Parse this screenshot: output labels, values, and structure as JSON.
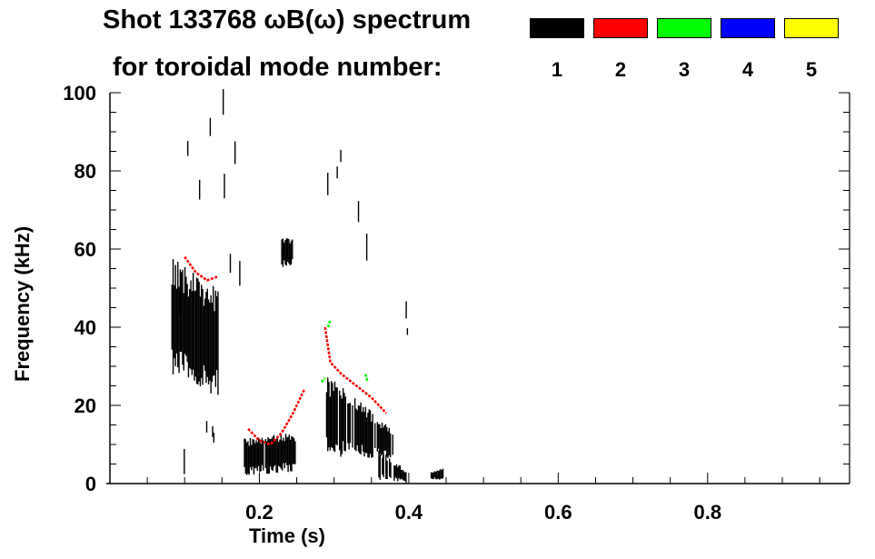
{
  "chart_data": {
    "type": "heatmap",
    "title": "Shot 133768 ωB(ω) spectrum",
    "subtitle": "for toroidal mode number:",
    "xlabel": "Time (s)",
    "ylabel": "Frequency (kHz)",
    "xlim": [
      0,
      0.99
    ],
    "ylim": [
      0,
      100
    ],
    "xticks": [
      "0.2",
      "0.4",
      "0.6",
      "0.8"
    ],
    "xtick_values": [
      0.2,
      0.4,
      0.6,
      0.8
    ],
    "yticks": [
      "0",
      "20",
      "40",
      "60",
      "80",
      "100"
    ],
    "ytick_values": [
      0,
      20,
      40,
      60,
      80,
      100
    ],
    "legend": [
      {
        "label": "1",
        "color": "#000000"
      },
      {
        "label": "2",
        "color": "#ff0000"
      },
      {
        "label": "3",
        "color": "#00ff00"
      },
      {
        "label": "4",
        "color": "#0000ff"
      },
      {
        "label": "5",
        "color": "#ffff00"
      }
    ],
    "legend_placement": "top-right",
    "blobs": [
      {
        "mode": 1,
        "t": [
          0.083,
          0.145
        ],
        "f_low": [
          28,
          22
        ],
        "f_high": [
          58,
          50
        ],
        "density": 0.95
      },
      {
        "mode": 1,
        "t": [
          0.09,
          0.185
        ],
        "f_low": [
          0,
          0
        ],
        "f_high": [
          95,
          95
        ],
        "density": 0.25
      },
      {
        "mode": 1,
        "t": [
          0.18,
          0.248
        ],
        "f_low": [
          2,
          3
        ],
        "f_high": [
          12,
          13
        ],
        "density": 0.95
      },
      {
        "mode": 1,
        "t": [
          0.23,
          0.245
        ],
        "f_low": [
          55,
          56
        ],
        "f_high": [
          64,
          63
        ],
        "density": 0.8
      },
      {
        "mode": 1,
        "t": [
          0.29,
          0.38
        ],
        "f_low": [
          7,
          6
        ],
        "f_high": [
          28,
          14
        ],
        "density": 0.95
      },
      {
        "mode": 1,
        "t": [
          0.36,
          0.4
        ],
        "f_low": [
          1,
          0
        ],
        "f_high": [
          9,
          3
        ],
        "density": 0.8
      },
      {
        "mode": 1,
        "t": [
          0.29,
          0.36
        ],
        "f_low": [
          28,
          30
        ],
        "f_high": [
          98,
          90
        ],
        "density": 0.15
      },
      {
        "mode": 1,
        "t": [
          0.43,
          0.447
        ],
        "f_low": [
          1,
          1
        ],
        "f_high": [
          3,
          4
        ],
        "density": 0.9
      },
      {
        "mode": 1,
        "t": [
          0.395,
          0.4
        ],
        "f_low": [
          32,
          32
        ],
        "f_high": [
          50,
          50
        ],
        "density": 0.5
      }
    ],
    "mode_lines": [
      {
        "mode": 2,
        "t": [
          0.1,
          0.115,
          0.13,
          0.145
        ],
        "f": [
          58,
          54,
          52,
          53
        ]
      },
      {
        "mode": 2,
        "t": [
          0.185,
          0.2,
          0.215,
          0.23,
          0.245,
          0.26
        ],
        "f": [
          14,
          11,
          10,
          13,
          18,
          24
        ]
      },
      {
        "mode": 2,
        "t": [
          0.288,
          0.295,
          0.31,
          0.33,
          0.35,
          0.365,
          0.37
        ],
        "f": [
          40,
          31,
          28,
          25,
          22,
          19,
          18
        ]
      },
      {
        "mode": 3,
        "t": [
          0.283,
          0.288
        ],
        "f": [
          26,
          27
        ]
      },
      {
        "mode": 3,
        "t": [
          0.342,
          0.345
        ],
        "f": [
          28,
          26
        ]
      },
      {
        "mode": 3,
        "t": [
          0.292,
          0.295
        ],
        "f": [
          40,
          42
        ]
      }
    ]
  }
}
